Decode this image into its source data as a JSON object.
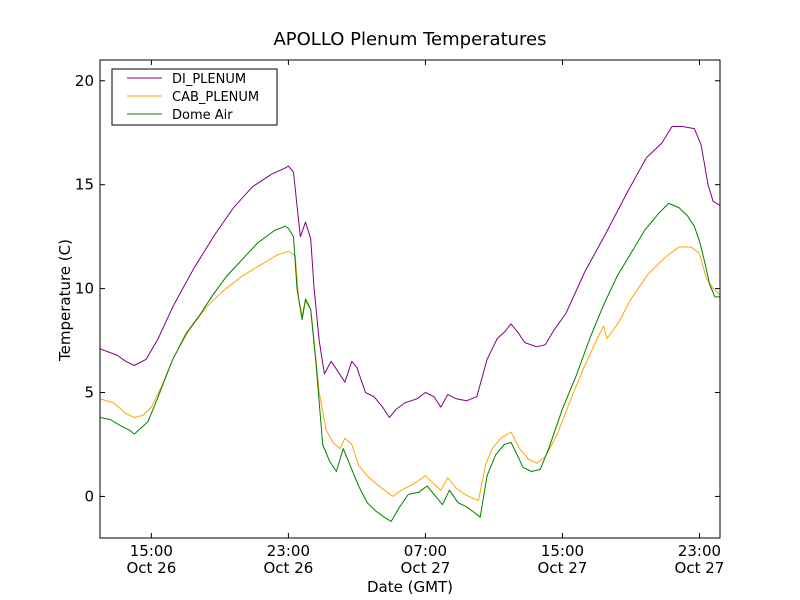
{
  "chart_data": {
    "type": "line",
    "title": "APOLLO Plenum Temperatures",
    "xlabel": "Date (GMT)",
    "ylabel": "Temperature (C)",
    "x_unit": "hours since Oct 26 11:00 GMT",
    "xlim": [
      0,
      36.2
    ],
    "ylim": [
      -2,
      21
    ],
    "yticks": [
      0,
      5,
      10,
      15,
      20
    ],
    "xticks": [
      {
        "x": 3.0,
        "time": "15:00",
        "date": "Oct 26"
      },
      {
        "x": 11.0,
        "time": "23:00",
        "date": "Oct 26"
      },
      {
        "x": 19.0,
        "time": "07:00",
        "date": "Oct 27"
      },
      {
        "x": 27.0,
        "time": "15:00",
        "date": "Oct 27"
      },
      {
        "x": 35.0,
        "time": "23:00",
        "date": "Oct 27"
      }
    ],
    "legend_position": "top-left",
    "series": [
      {
        "name": "DI_PLENUM",
        "color": "#800080",
        "points": [
          [
            0,
            7.1
          ],
          [
            1,
            6.8
          ],
          [
            1.5,
            6.5
          ],
          [
            2,
            6.3
          ],
          [
            2.7,
            6.6
          ],
          [
            3.4,
            7.6
          ],
          [
            4.3,
            9.2
          ],
          [
            5.5,
            11.0
          ],
          [
            6.7,
            12.6
          ],
          [
            7.8,
            13.9
          ],
          [
            8.9,
            14.9
          ],
          [
            10.0,
            15.5
          ],
          [
            10.8,
            15.8
          ],
          [
            11.0,
            15.9
          ],
          [
            11.3,
            15.6
          ],
          [
            11.5,
            14.0
          ],
          [
            11.7,
            12.5
          ],
          [
            12.0,
            13.2
          ],
          [
            12.3,
            12.4
          ],
          [
            12.5,
            10.0
          ],
          [
            12.8,
            7.5
          ],
          [
            13.1,
            5.9
          ],
          [
            13.5,
            6.5
          ],
          [
            13.9,
            6.0
          ],
          [
            14.3,
            5.5
          ],
          [
            14.7,
            6.5
          ],
          [
            15.0,
            6.2
          ],
          [
            15.5,
            5.0
          ],
          [
            16.0,
            4.8
          ],
          [
            16.5,
            4.3
          ],
          [
            16.9,
            3.8
          ],
          [
            17.3,
            4.2
          ],
          [
            17.8,
            4.5
          ],
          [
            18.5,
            4.7
          ],
          [
            19.0,
            5.0
          ],
          [
            19.5,
            4.8
          ],
          [
            19.9,
            4.3
          ],
          [
            20.3,
            4.9
          ],
          [
            20.8,
            4.7
          ],
          [
            21.4,
            4.6
          ],
          [
            22.0,
            4.8
          ],
          [
            22.6,
            6.6
          ],
          [
            23.2,
            7.6
          ],
          [
            23.6,
            7.9
          ],
          [
            24.0,
            8.3
          ],
          [
            24.4,
            7.9
          ],
          [
            24.8,
            7.4
          ],
          [
            25.5,
            7.2
          ],
          [
            26.0,
            7.3
          ],
          [
            26.5,
            8.0
          ],
          [
            27.2,
            8.8
          ],
          [
            28.3,
            10.8
          ],
          [
            29.5,
            12.6
          ],
          [
            30.7,
            14.5
          ],
          [
            31.9,
            16.3
          ],
          [
            32.8,
            17.0
          ],
          [
            33.4,
            17.8
          ],
          [
            34.0,
            17.8
          ],
          [
            34.7,
            17.7
          ],
          [
            35.1,
            16.9
          ],
          [
            35.5,
            15.0
          ],
          [
            35.8,
            14.2
          ],
          [
            36.2,
            14.0
          ]
        ]
      },
      {
        "name": "CAB_PLENUM",
        "color": "#ffa500",
        "points": [
          [
            0,
            4.7
          ],
          [
            0.8,
            4.5
          ],
          [
            1.5,
            4.0
          ],
          [
            2.0,
            3.8
          ],
          [
            2.5,
            3.9
          ],
          [
            3.0,
            4.3
          ],
          [
            3.6,
            5.3
          ],
          [
            4.3,
            6.7
          ],
          [
            5.2,
            8.0
          ],
          [
            6.2,
            9.1
          ],
          [
            7.2,
            9.9
          ],
          [
            8.3,
            10.6
          ],
          [
            9.3,
            11.1
          ],
          [
            10.3,
            11.6
          ],
          [
            11.0,
            11.8
          ],
          [
            11.4,
            11.6
          ],
          [
            11.6,
            9.5
          ],
          [
            11.8,
            8.7
          ],
          [
            12.0,
            9.4
          ],
          [
            12.3,
            9.0
          ],
          [
            12.5,
            7.5
          ],
          [
            12.8,
            5.0
          ],
          [
            13.2,
            3.2
          ],
          [
            13.6,
            2.6
          ],
          [
            14.0,
            2.3
          ],
          [
            14.3,
            2.8
          ],
          [
            14.7,
            2.5
          ],
          [
            15.1,
            1.5
          ],
          [
            15.6,
            1.0
          ],
          [
            16.0,
            0.7
          ],
          [
            16.6,
            0.3
          ],
          [
            17.1,
            0.0
          ],
          [
            17.6,
            0.3
          ],
          [
            18.3,
            0.6
          ],
          [
            19.0,
            1.0
          ],
          [
            19.5,
            0.6
          ],
          [
            19.9,
            0.3
          ],
          [
            20.3,
            0.9
          ],
          [
            20.8,
            0.4
          ],
          [
            21.3,
            0.1
          ],
          [
            21.8,
            -0.1
          ],
          [
            22.1,
            -0.2
          ],
          [
            22.5,
            1.5
          ],
          [
            22.9,
            2.3
          ],
          [
            23.4,
            2.8
          ],
          [
            24.0,
            3.1
          ],
          [
            24.5,
            2.3
          ],
          [
            25.0,
            1.8
          ],
          [
            25.5,
            1.6
          ],
          [
            26.0,
            1.9
          ],
          [
            26.7,
            3.0
          ],
          [
            27.5,
            4.7
          ],
          [
            28.3,
            6.3
          ],
          [
            29.1,
            7.7
          ],
          [
            29.4,
            8.2
          ],
          [
            29.6,
            7.6
          ],
          [
            30.3,
            8.4
          ],
          [
            31.0,
            9.5
          ],
          [
            32.0,
            10.7
          ],
          [
            33.0,
            11.5
          ],
          [
            33.8,
            12.0
          ],
          [
            34.5,
            12.0
          ],
          [
            35.0,
            11.7
          ],
          [
            35.4,
            10.5
          ],
          [
            35.8,
            10.0
          ],
          [
            36.2,
            9.7
          ]
        ]
      },
      {
        "name": "Dome Air",
        "color": "#008000",
        "points": [
          [
            0,
            3.8
          ],
          [
            0.6,
            3.7
          ],
          [
            1.2,
            3.4
          ],
          [
            1.7,
            3.2
          ],
          [
            2.0,
            3.0
          ],
          [
            2.4,
            3.3
          ],
          [
            2.8,
            3.6
          ],
          [
            3.4,
            4.8
          ],
          [
            4.2,
            6.5
          ],
          [
            5.0,
            7.8
          ],
          [
            5.8,
            8.7
          ],
          [
            6.6,
            9.7
          ],
          [
            7.4,
            10.6
          ],
          [
            8.3,
            11.4
          ],
          [
            9.2,
            12.2
          ],
          [
            10.2,
            12.8
          ],
          [
            10.8,
            13.0
          ],
          [
            11.0,
            12.9
          ],
          [
            11.3,
            12.5
          ],
          [
            11.5,
            10.0
          ],
          [
            11.8,
            8.5
          ],
          [
            12.0,
            9.5
          ],
          [
            12.3,
            9.0
          ],
          [
            12.6,
            6.5
          ],
          [
            13.0,
            2.5
          ],
          [
            13.4,
            1.7
          ],
          [
            13.8,
            1.2
          ],
          [
            14.2,
            2.3
          ],
          [
            14.6,
            1.5
          ],
          [
            15.1,
            0.5
          ],
          [
            15.6,
            -0.3
          ],
          [
            16.1,
            -0.7
          ],
          [
            16.6,
            -1.0
          ],
          [
            17.0,
            -1.2
          ],
          [
            17.5,
            -0.5
          ],
          [
            18.0,
            0.1
          ],
          [
            18.6,
            0.2
          ],
          [
            19.1,
            0.5
          ],
          [
            19.6,
            0.0
          ],
          [
            20.0,
            -0.4
          ],
          [
            20.4,
            0.3
          ],
          [
            20.9,
            -0.3
          ],
          [
            21.4,
            -0.5
          ],
          [
            21.9,
            -0.8
          ],
          [
            22.2,
            -1.0
          ],
          [
            22.6,
            1.0
          ],
          [
            23.1,
            2.0
          ],
          [
            23.6,
            2.5
          ],
          [
            24.0,
            2.6
          ],
          [
            24.3,
            2.1
          ],
          [
            24.7,
            1.4
          ],
          [
            25.2,
            1.2
          ],
          [
            25.7,
            1.3
          ],
          [
            26.2,
            2.3
          ],
          [
            27.0,
            4.2
          ],
          [
            27.8,
            5.8
          ],
          [
            28.6,
            7.6
          ],
          [
            29.4,
            9.2
          ],
          [
            30.2,
            10.6
          ],
          [
            31.0,
            11.7
          ],
          [
            31.8,
            12.8
          ],
          [
            32.6,
            13.6
          ],
          [
            33.2,
            14.1
          ],
          [
            33.8,
            13.9
          ],
          [
            34.3,
            13.5
          ],
          [
            34.7,
            13.0
          ],
          [
            35.0,
            12.3
          ],
          [
            35.3,
            11.3
          ],
          [
            35.6,
            10.2
          ],
          [
            35.9,
            9.6
          ],
          [
            36.2,
            9.6
          ]
        ]
      }
    ]
  }
}
